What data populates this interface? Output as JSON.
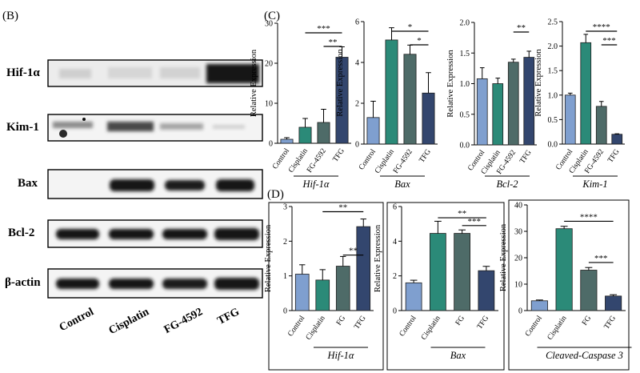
{
  "panel_labels": {
    "b": "(B)",
    "c": "(C)",
    "d": "(D)"
  },
  "blot": {
    "proteins": [
      "Hif-1α",
      "Kim-1",
      "Bax",
      "Bcl-2",
      "β-actin"
    ],
    "lanes": [
      "Control",
      "Cisplatin",
      "FG-4592",
      "TFG"
    ]
  },
  "colors": {
    "control": "#7f9fcf",
    "cisplatin": "#2b8a78",
    "fg": "#4e6b68",
    "tfg": "#33466e",
    "blot_band": "#1a1a1a",
    "blot_bg": "#f4f4f4"
  },
  "chart_data": [
    {
      "type": "bar",
      "panel": "C",
      "title": "Hif-1α",
      "ylabel": "Relative Expression",
      "categories": [
        "Control",
        "Cisplatin",
        "FG-4592",
        "TFG"
      ],
      "values": [
        1,
        4,
        5.2,
        21.5
      ],
      "errors": [
        0.4,
        2.2,
        3.3,
        2.6
      ],
      "ylim": [
        0,
        30
      ],
      "yticks": [
        "0",
        "10",
        "20",
        "30"
      ],
      "significance": [
        {
          "from": 1,
          "to": 3,
          "label": "***"
        },
        {
          "from": 2,
          "to": 3,
          "label": "**"
        }
      ]
    },
    {
      "type": "bar",
      "panel": "C",
      "title": "Bax",
      "ylabel": "Relative Expression",
      "categories": [
        "Control",
        "Cisplatin",
        "FG-4592",
        "TFG"
      ],
      "values": [
        1.3,
        5.1,
        4.4,
        2.5
      ],
      "errors": [
        0.8,
        0.6,
        0.45,
        1.0
      ],
      "ylim": [
        0,
        6
      ],
      "yticks": [
        "0",
        "2",
        "4",
        "6"
      ],
      "significance": [
        {
          "from": 1,
          "to": 3,
          "label": "*"
        },
        {
          "from": 2,
          "to": 3,
          "label": "*"
        }
      ]
    },
    {
      "type": "bar",
      "panel": "C",
      "title": "Bcl-2",
      "ylabel": "Relative Expression",
      "categories": [
        "Control",
        "Cisplatin",
        "FG-4592",
        "TFG"
      ],
      "values": [
        1.08,
        1.0,
        1.35,
        1.43
      ],
      "errors": [
        0.18,
        0.09,
        0.05,
        0.1
      ],
      "ylim": [
        0,
        2.0
      ],
      "yticks": [
        "0.0",
        "0.5",
        "1.0",
        "1.5",
        "2.0"
      ],
      "significance": [
        {
          "from": 2,
          "to": 3,
          "label": "**"
        }
      ]
    },
    {
      "type": "bar",
      "panel": "C",
      "title": "Kim-1",
      "ylabel": "Relative Expression",
      "categories": [
        "Control",
        "Cisplatin",
        "FG-4592",
        "TFG"
      ],
      "values": [
        1.0,
        2.07,
        0.77,
        0.2
      ],
      "errors": [
        0.04,
        0.17,
        0.1,
        0.01
      ],
      "ylim": [
        0,
        2.5
      ],
      "yticks": [
        "0.0",
        "0.5",
        "1.0",
        "1.5",
        "2.0",
        "2.5"
      ],
      "significance": [
        {
          "from": 1,
          "to": 3,
          "label": "****"
        },
        {
          "from": 2,
          "to": 3,
          "label": "***"
        }
      ]
    },
    {
      "type": "bar",
      "panel": "D",
      "title": "Hif-1α",
      "ylabel": "Relative Expression",
      "categories": [
        "Control",
        "Cisplatin",
        "FG",
        "TFG"
      ],
      "values": [
        1.05,
        0.88,
        1.28,
        2.42
      ],
      "errors": [
        0.27,
        0.3,
        0.28,
        0.22
      ],
      "ylim": [
        0,
        3
      ],
      "yticks": [
        "0",
        "1",
        "2",
        "3"
      ],
      "significance": [
        {
          "from": 2,
          "to": 3,
          "label": "**",
          "y": 1.6
        },
        {
          "from": 1,
          "to": 3,
          "label": "**",
          "y": 2.85
        }
      ]
    },
    {
      "type": "bar",
      "panel": "D",
      "title": "Bax",
      "ylabel": "Relative Expression",
      "categories": [
        "Control",
        "Cisplatin",
        "FG",
        "TFG"
      ],
      "values": [
        1.6,
        4.45,
        4.45,
        2.3
      ],
      "errors": [
        0.15,
        0.7,
        0.2,
        0.25
      ],
      "ylim": [
        0,
        6
      ],
      "yticks": [
        "0",
        "2",
        "4",
        "6"
      ],
      "significance": [
        {
          "from": 2,
          "to": 3,
          "label": "***",
          "y": 4.9
        },
        {
          "from": 1,
          "to": 3,
          "label": "**",
          "y": 5.35
        }
      ]
    },
    {
      "type": "bar",
      "panel": "D",
      "title": "Cleaved-Caspase 3",
      "ylabel": "Relative Expression",
      "categories": [
        "Control",
        "Cisplatin",
        "FG",
        "TFG"
      ],
      "values": [
        3.7,
        31,
        15.3,
        5.5
      ],
      "errors": [
        0.3,
        0.9,
        1.0,
        0.5
      ],
      "ylim": [
        0,
        40
      ],
      "yticks": [
        "0",
        "10",
        "20",
        "30",
        "40"
      ],
      "significance": [
        {
          "from": 2,
          "to": 3,
          "label": "***",
          "y": 18.2
        },
        {
          "from": 1,
          "to": 3,
          "label": "****",
          "y": 33.8
        }
      ]
    }
  ]
}
